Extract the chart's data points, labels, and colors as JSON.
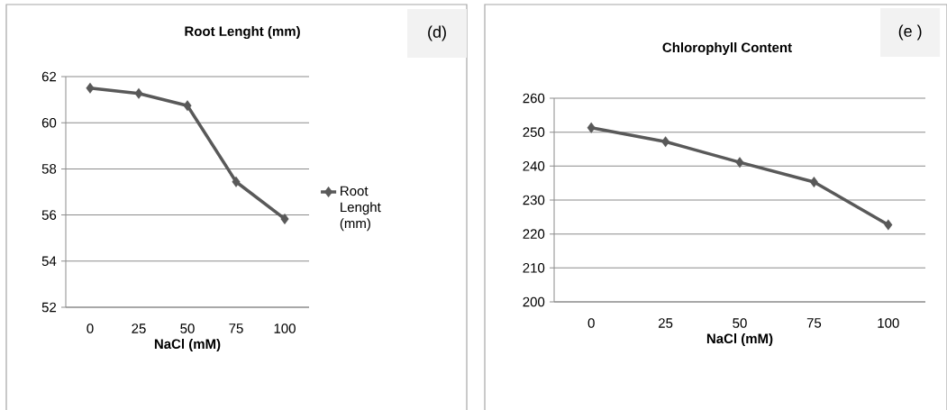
{
  "chart_data": [
    {
      "type": "line",
      "title": "Root Lenght (mm)",
      "xlabel": "NaCl (mM)",
      "categories": [
        "0",
        "25",
        "50",
        "75",
        "100"
      ],
      "series": [
        {
          "name": "Root Lenght (mm)",
          "color": "#595959",
          "values": [
            61.5,
            61.27,
            60.74,
            57.44,
            55.83
          ]
        }
      ],
      "ylim": [
        52,
        62
      ],
      "yticks": [
        52,
        54,
        56,
        58,
        60,
        62
      ],
      "grid": "y",
      "legend": "right",
      "marker": "diamond",
      "annotations": [
        "(d)"
      ]
    },
    {
      "type": "line",
      "title": "Chlorophyll  Content",
      "xlabel": "NaCl (mM)",
      "categories": [
        "0",
        "25",
        "50",
        "75",
        "100"
      ],
      "series": [
        {
          "color": "#595959",
          "values": [
            251.3,
            247.2,
            241.1,
            235.3,
            222.7
          ]
        }
      ],
      "ylim": [
        200,
        260
      ],
      "yticks": [
        200,
        210,
        220,
        230,
        240,
        250,
        260
      ],
      "grid": "y",
      "marker": "diamond",
      "annotations": [
        "(e )"
      ]
    }
  ]
}
